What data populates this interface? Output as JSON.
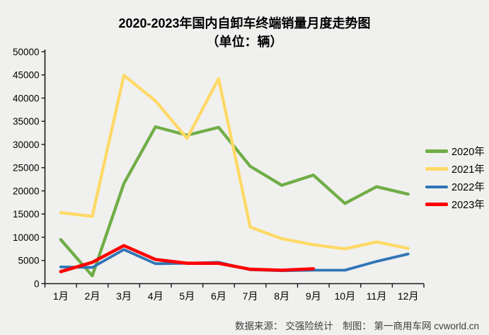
{
  "title": "2020-2023年国内自卸车终端销量月度走势图",
  "subtitle": "（单位：辆）",
  "source_note": "数据来源： 交强险统计　制图： 第一商用车网 cvworld.cn",
  "colors": {
    "green": "#70AD47",
    "yellow": "#FFD966",
    "blue": "#2E75B6",
    "red": "#FF0000",
    "background": "#F0F0EE",
    "axis": "#1a1a1a"
  },
  "chart_data": {
    "type": "line",
    "title": "2020-2023年国内自卸车终端销量月度走势图",
    "subtitle": "（单位：辆）",
    "categories": [
      "1月",
      "2月",
      "3月",
      "4月",
      "5月",
      "6月",
      "7月",
      "8月",
      "9月",
      "10月",
      "11月",
      "12月"
    ],
    "series": [
      {
        "name": "2020年",
        "color": "#70AD47",
        "width": 4.3,
        "values": [
          9500,
          1700,
          21600,
          33800,
          32000,
          33700,
          25300,
          21200,
          23400,
          17300,
          20900,
          19300
        ]
      },
      {
        "name": "2021年",
        "color": "#FFD966",
        "width": 4.3,
        "values": [
          15300,
          14500,
          44900,
          39400,
          31300,
          44200,
          12200,
          9700,
          8400,
          7500,
          9000,
          7600
        ]
      },
      {
        "name": "2022年",
        "color": "#2E75B6",
        "width": 3.8,
        "values": [
          3600,
          3500,
          7350,
          4300,
          4400,
          4600,
          3000,
          2800,
          2900,
          2900,
          4800,
          6400
        ]
      },
      {
        "name": "2023年",
        "color": "#FF0000",
        "width": 4.6,
        "values": [
          2600,
          4600,
          8200,
          5200,
          4400,
          4400,
          3100,
          2900,
          3200
        ]
      }
    ],
    "ylim": [
      0,
      50000
    ],
    "ytick_interval": 5000,
    "grid": false,
    "legend_position": "right"
  }
}
